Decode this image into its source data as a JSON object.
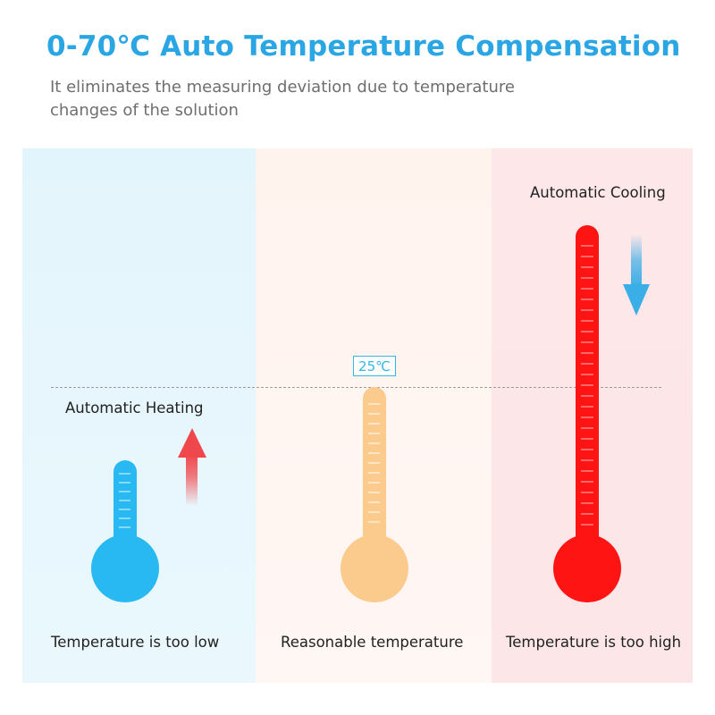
{
  "header": {
    "title": "0-70℃ Auto Temperature Compensation",
    "subtitle": "It eliminates the measuring deviation due to temperature changes of the solution"
  },
  "panels": {
    "low": {
      "action_label": "Automatic Heating",
      "caption": "Temperature is too low",
      "color": "#29b9f2",
      "background": "#e3f5fc"
    },
    "reasonable": {
      "value_label": "25℃",
      "caption": "Reasonable temperature",
      "color": "#fbcb8e",
      "background": "#fff3ee"
    },
    "high": {
      "action_label": "Automatic Cooling",
      "caption": "Temperature is too high",
      "color": "#ff1414",
      "background": "#fde7e9"
    }
  },
  "colors": {
    "accent": "#2aa6e4",
    "heat_arrow": "#f0474c",
    "cool_arrow": "#3aaee6",
    "dash_line": "#9c9c9c"
  },
  "icons": {
    "heat": "arrow-up-icon",
    "cool": "arrow-down-icon",
    "thermometer": "thermometer-icon"
  }
}
